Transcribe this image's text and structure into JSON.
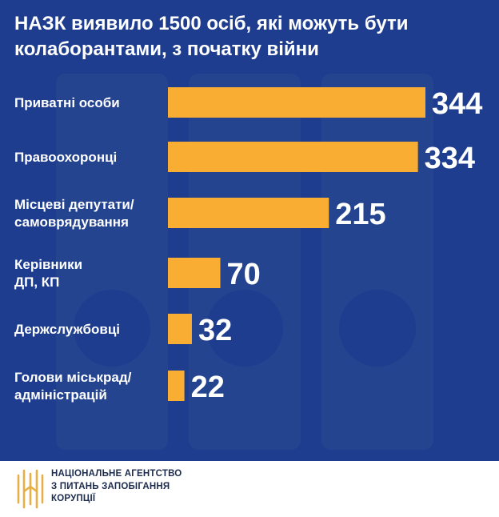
{
  "title": "НАЗК виявило 1500 осіб, які можуть бути колаборантами, з початку війни",
  "colors": {
    "background": "#1e3d8f",
    "bar": "#f9ad33",
    "text": "#ffffff",
    "decoration": "#24448f",
    "logo": "#e6b047"
  },
  "chart_data": {
    "type": "bar",
    "orientation": "horizontal",
    "categories": [
      [
        "Приватні особи"
      ],
      [
        "Правоохоронці"
      ],
      [
        "Місцеві депутати/",
        "самоврядування"
      ],
      [
        "Керівники",
        "ДП, КП"
      ],
      [
        "Держслужбовці"
      ],
      [
        "Голови міськрад/",
        "адміністрацій"
      ]
    ],
    "values": [
      344,
      334,
      215,
      70,
      32,
      22
    ],
    "xlim": [
      0,
      344
    ],
    "grid": false,
    "legend": "none"
  },
  "footer": {
    "org_name": "НАЦІОНАЛЬНЕ АГЕНТСТВО\nЗ ПИТАНЬ ЗАПОБІГАННЯ\nКОРУПЦІЇ",
    "logo_icon": "nazk-logo-icon"
  }
}
